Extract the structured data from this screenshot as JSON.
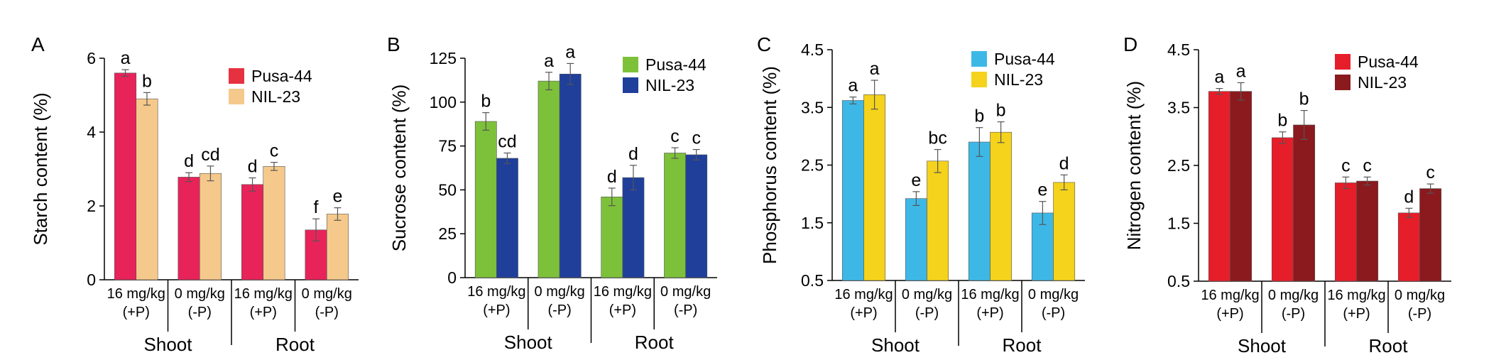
{
  "chart_data": [
    {
      "type": "bar",
      "panel": "A",
      "ylabel": "Starch content (%)",
      "ylim": [
        0,
        6
      ],
      "yticks": [
        "0",
        "2",
        "4",
        "6"
      ],
      "categories": [
        {
          "line1": "16 mg/kg",
          "line2": "(+P)"
        },
        {
          "line1": "0 mg/kg",
          "line2": "(-P)"
        },
        {
          "line1": "16 mg/kg",
          "line2": "(+P)"
        },
        {
          "line1": "0 mg/kg",
          "line2": "(-P)"
        }
      ],
      "groups": [
        "Shoot",
        "Root"
      ],
      "series": [
        {
          "name": "Pusa-44",
          "color": "#e8235a",
          "values": [
            5.6,
            2.78,
            2.58,
            1.35
          ],
          "errors": [
            0.09,
            0.12,
            0.18,
            0.3
          ],
          "labels": [
            "a",
            "d",
            "d",
            "f"
          ]
        },
        {
          "name": "NIL-23",
          "color": "#f5c98b",
          "values": [
            4.9,
            2.88,
            3.07,
            1.78
          ],
          "errors": [
            0.17,
            0.2,
            0.11,
            0.17
          ],
          "labels": [
            "b",
            "cd",
            "c",
            "e"
          ]
        }
      ],
      "legend_colors": [
        "#e63140",
        "#f5c98b"
      ]
    },
    {
      "type": "bar",
      "panel": "B",
      "ylabel": "Sucrose content (%)",
      "ylim": [
        0,
        125
      ],
      "yticks": [
        "0",
        "25",
        "50",
        "75",
        "100",
        "125"
      ],
      "categories": [
        {
          "line1": "16 mg/kg",
          "line2": "(+P)"
        },
        {
          "line1": "0 mg/kg",
          "line2": "(-P)"
        },
        {
          "line1": "16 mg/kg",
          "line2": "(+P)"
        },
        {
          "line1": "0 mg/kg",
          "line2": "(-P)"
        }
      ],
      "groups": [
        "Shoot",
        "Root"
      ],
      "series": [
        {
          "name": "Pusa-44",
          "color": "#7dc13a",
          "values": [
            89,
            112,
            46,
            71
          ],
          "errors": [
            5,
            5,
            5,
            3
          ],
          "labels": [
            "b",
            "a",
            "d",
            "c"
          ]
        },
        {
          "name": "NIL-23",
          "color": "#1f3f9b",
          "values": [
            68,
            116,
            57,
            70
          ],
          "errors": [
            3,
            6,
            7,
            3
          ],
          "labels": [
            "cd",
            "a",
            "d",
            "c"
          ]
        }
      ],
      "legend_colors": [
        "#7dc13a",
        "#1f3f9b"
      ]
    },
    {
      "type": "bar",
      "panel": "C",
      "ylabel": "Phosphorus content (%)",
      "ylim": [
        0.5,
        4.5
      ],
      "yticks": [
        "0.5",
        "1.5",
        "2.5",
        "3.5",
        "4.5"
      ],
      "categories": [
        {
          "line1": "16 mg/kg",
          "line2": "(+P)"
        },
        {
          "line1": "0 mg/kg",
          "line2": "(-P)"
        },
        {
          "line1": "16 mg/kg",
          "line2": "(+P)"
        },
        {
          "line1": "0 mg/kg",
          "line2": "(-P)"
        }
      ],
      "groups": [
        "Shoot",
        "Root"
      ],
      "series": [
        {
          "name": "Pusa-44",
          "color": "#3db8e6",
          "values": [
            3.62,
            1.92,
            2.9,
            1.67
          ],
          "errors": [
            0.06,
            0.12,
            0.25,
            0.2
          ],
          "labels": [
            "a",
            "e",
            "b",
            "e"
          ]
        },
        {
          "name": "NIL-23",
          "color": "#f5d21b",
          "values": [
            3.72,
            2.57,
            3.07,
            2.2
          ],
          "errors": [
            0.25,
            0.2,
            0.18,
            0.13
          ],
          "labels": [
            "a",
            "bc",
            "b",
            "d"
          ]
        }
      ],
      "legend_colors": [
        "#3db8e6",
        "#f5d21b"
      ]
    },
    {
      "type": "bar",
      "panel": "D",
      "ylabel": "Nitrogen content (%)",
      "ylim": [
        0.5,
        4.5
      ],
      "yticks": [
        "0.5",
        "1.5",
        "2.5",
        "3.5",
        "4.5"
      ],
      "categories": [
        {
          "line1": "16 mg/kg",
          "line2": "(+P)"
        },
        {
          "line1": "0 mg/kg",
          "line2": "(-P)"
        },
        {
          "line1": "16 mg/kg",
          "line2": "(+P)"
        },
        {
          "line1": "0 mg/kg",
          "line2": "(-P)"
        }
      ],
      "groups": [
        "Shoot",
        "Root"
      ],
      "series": [
        {
          "name": "Pusa-44",
          "color": "#e61e2a",
          "values": [
            3.78,
            2.98,
            2.2,
            1.68
          ],
          "errors": [
            0.05,
            0.1,
            0.1,
            0.08
          ],
          "labels": [
            "a",
            "b",
            "c",
            "d"
          ]
        },
        {
          "name": "NIL-23",
          "color": "#8b1a1e",
          "values": [
            3.78,
            3.2,
            2.23,
            2.1
          ],
          "errors": [
            0.15,
            0.25,
            0.07,
            0.08
          ],
          "labels": [
            "a",
            "b",
            "c",
            "c"
          ]
        }
      ],
      "legend_colors": [
        "#e61e2a",
        "#8b1a1e"
      ]
    }
  ]
}
